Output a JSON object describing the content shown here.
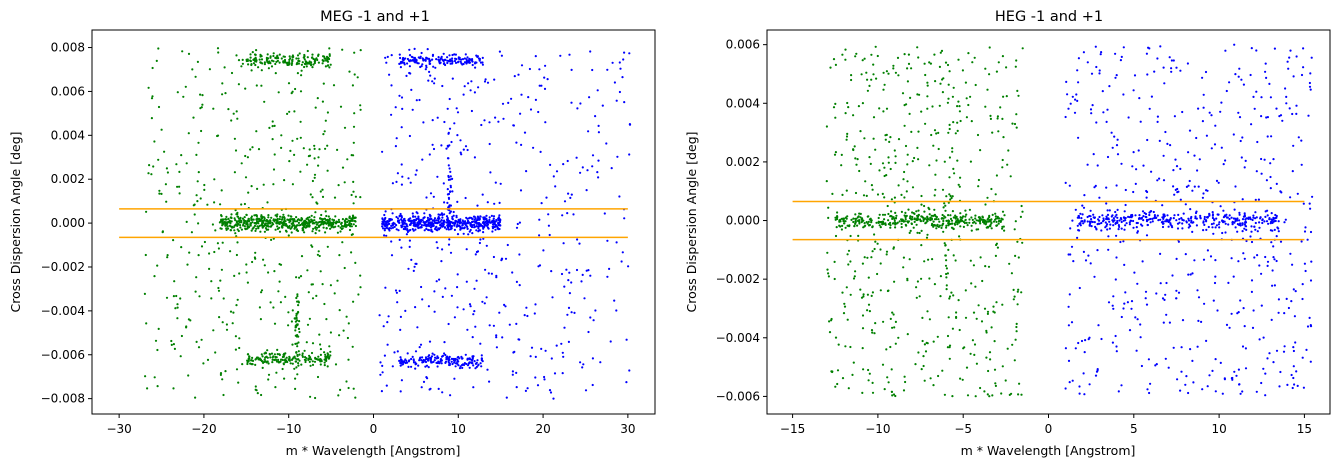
{
  "chart_data": [
    {
      "type": "scatter",
      "title": "MEG -1 and +1",
      "xlabel": "m * Wavelength [Angstrom]",
      "ylabel": "Cross Dispersion Angle [deg]",
      "xlim": [
        -33.2,
        33.2
      ],
      "ylim": [
        -0.0087,
        0.0088
      ],
      "xticks": [
        -30,
        -20,
        -10,
        0,
        10,
        20,
        30
      ],
      "xtick_labels": [
        "−30",
        "−20",
        "−10",
        "0",
        "10",
        "20",
        "30"
      ],
      "yticks": [
        -0.008,
        -0.006,
        -0.004,
        -0.002,
        0.0,
        0.002,
        0.004,
        0.006,
        0.008
      ],
      "ytick_labels": [
        "−0.008",
        "−0.006",
        "−0.004",
        "−0.002",
        "0.000",
        "0.002",
        "0.004",
        "0.006",
        "0.008"
      ],
      "grid": false,
      "colors": {
        "minus_order": "#008000",
        "plus_order": "#0000ff",
        "limits": "#ffa500"
      },
      "limit_lines": [
        {
          "y": 0.00065,
          "x_from": -30,
          "x_to": 30
        },
        {
          "y": -0.00065,
          "x_from": -30,
          "x_to": 30
        }
      ],
      "series": [
        {
          "order": "-1",
          "x_range": [
            -27,
            -1.5
          ],
          "y_range": [
            -0.008,
            0.008
          ],
          "clusters": [
            {
              "x": -10,
              "x_spread": 8,
              "y": 0.0,
              "y_spread": 0.00018
            },
            {
              "x": -10,
              "x_spread": 5,
              "y": 0.0074,
              "y_spread": 0.00015
            },
            {
              "x": -10,
              "x_spread": 5,
              "y": -0.0062,
              "y_spread": 0.00015
            },
            {
              "x": -9,
              "x_spread": 0.25,
              "y": -0.0045,
              "y_spread": 0.001
            }
          ]
        },
        {
          "order": "+1",
          "x_range": [
            0.5,
            30.5
          ],
          "y_range": [
            -0.008,
            0.008
          ],
          "clusters": [
            {
              "x": 8,
              "x_spread": 7,
              "y": 0.0,
              "y_spread": 0.00018
            },
            {
              "x": 8,
              "x_spread": 5,
              "y": 0.0074,
              "y_spread": 0.00015
            },
            {
              "x": 8,
              "x_spread": 5,
              "y": -0.0063,
              "y_spread": 0.00015
            },
            {
              "x": 8.9,
              "x_spread": 0.25,
              "y": 0.0016,
              "y_spread": 0.0014
            }
          ]
        }
      ]
    },
    {
      "type": "scatter",
      "title": "HEG -1 and +1",
      "xlabel": "m * Wavelength [Angstrom]",
      "ylabel": "Cross Dispersion Angle [deg]",
      "xlim": [
        -16.5,
        16.5
      ],
      "ylim": [
        -0.0066,
        0.0065
      ],
      "xticks": [
        -15,
        -10,
        -5,
        0,
        5,
        10,
        15
      ],
      "xtick_labels": [
        "−15",
        "−10",
        "−5",
        "0",
        "5",
        "10",
        "15"
      ],
      "yticks": [
        -0.006,
        -0.004,
        -0.002,
        0.0,
        0.002,
        0.004,
        0.006
      ],
      "ytick_labels": [
        "−0.006",
        "−0.004",
        "−0.002",
        "0.000",
        "0.002",
        "0.004",
        "0.006"
      ],
      "grid": false,
      "colors": {
        "minus_order": "#008000",
        "plus_order": "#0000ff",
        "limits": "#ffa500"
      },
      "limit_lines": [
        {
          "y": 0.00065,
          "x_from": -15,
          "x_to": 15
        },
        {
          "y": -0.00065,
          "x_from": -15,
          "x_to": 15
        }
      ],
      "series": [
        {
          "order": "-1",
          "x_range": [
            -13,
            -1.5
          ],
          "y_range": [
            -0.006,
            0.006
          ],
          "clusters": [
            {
              "x": -7.5,
              "x_spread": 5,
              "y": 0.0,
              "y_spread": 0.00015
            },
            {
              "x": -5.8,
              "x_spread": 0.25,
              "y": 0.0,
              "y_spread": 0.002
            }
          ]
        },
        {
          "order": "+1",
          "x_range": [
            1,
            15.5
          ],
          "y_range": [
            -0.006,
            0.006
          ],
          "clusters": [
            {
              "x": 7.5,
              "x_spread": 6,
              "y": 0.0,
              "y_spread": 0.00015
            }
          ]
        }
      ]
    }
  ]
}
